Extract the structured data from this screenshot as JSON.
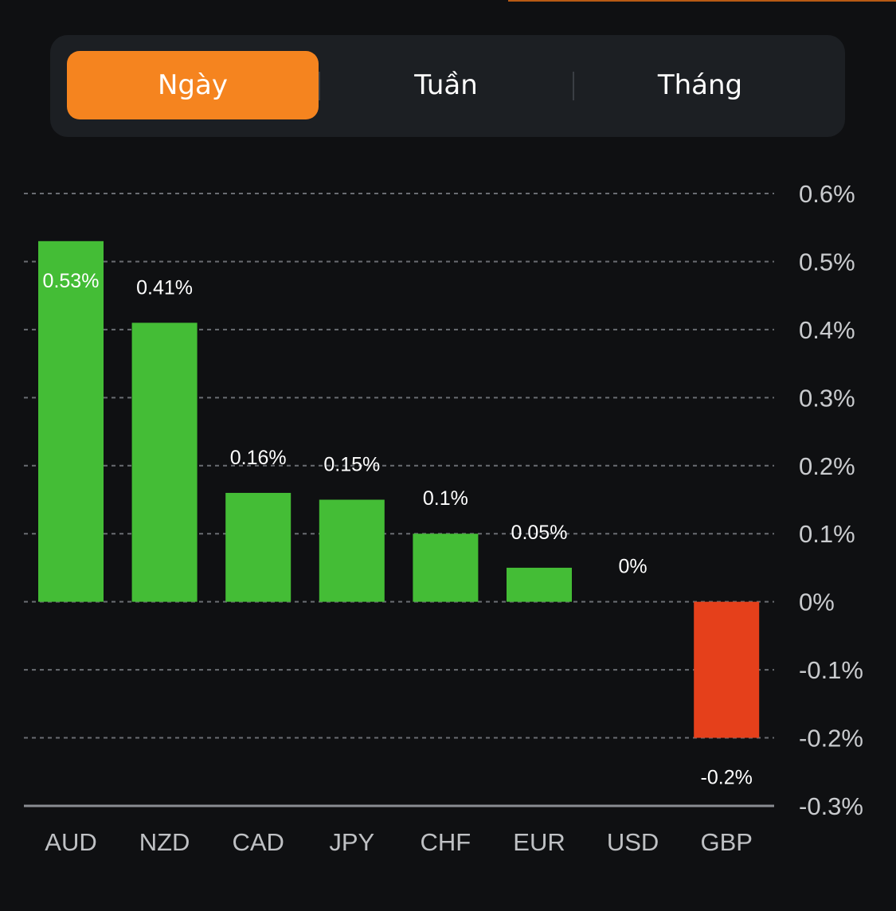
{
  "tabs": {
    "items": [
      "Ngày",
      "Tuần",
      "Tháng"
    ],
    "selected": "Ngày"
  },
  "colors": {
    "positive": "#44bd36",
    "negative": "#e5401b",
    "accent": "#f5841f",
    "gridline": "#6a6d72",
    "tick_text": "#c9cbce",
    "category_text": "#bfc1c4",
    "value_text": "#ffffff"
  },
  "chart_data": {
    "type": "bar",
    "categories": [
      "AUD",
      "NZD",
      "CAD",
      "JPY",
      "CHF",
      "EUR",
      "USD",
      "GBP"
    ],
    "values": [
      0.53,
      0.41,
      0.16,
      0.15,
      0.1,
      0.05,
      0,
      -0.2
    ],
    "value_labels": [
      "0.53%",
      "0.41%",
      "0.16%",
      "0.15%",
      "0.1%",
      "0.05%",
      "0%",
      "-0.2%"
    ],
    "y_ticks": [
      0.6,
      0.5,
      0.4,
      0.3,
      0.2,
      0.1,
      0,
      -0.1,
      -0.2,
      -0.3
    ],
    "y_tick_labels": [
      "0.6%",
      "0.5%",
      "0.4%",
      "0.3%",
      "0.2%",
      "0.1%",
      "0%",
      "-0.1%",
      "-0.2%",
      "-0.3%"
    ],
    "ylim": [
      -0.3,
      0.6
    ],
    "y_axis_position": "right",
    "grid": true,
    "title": "",
    "xlabel": "",
    "ylabel": ""
  }
}
